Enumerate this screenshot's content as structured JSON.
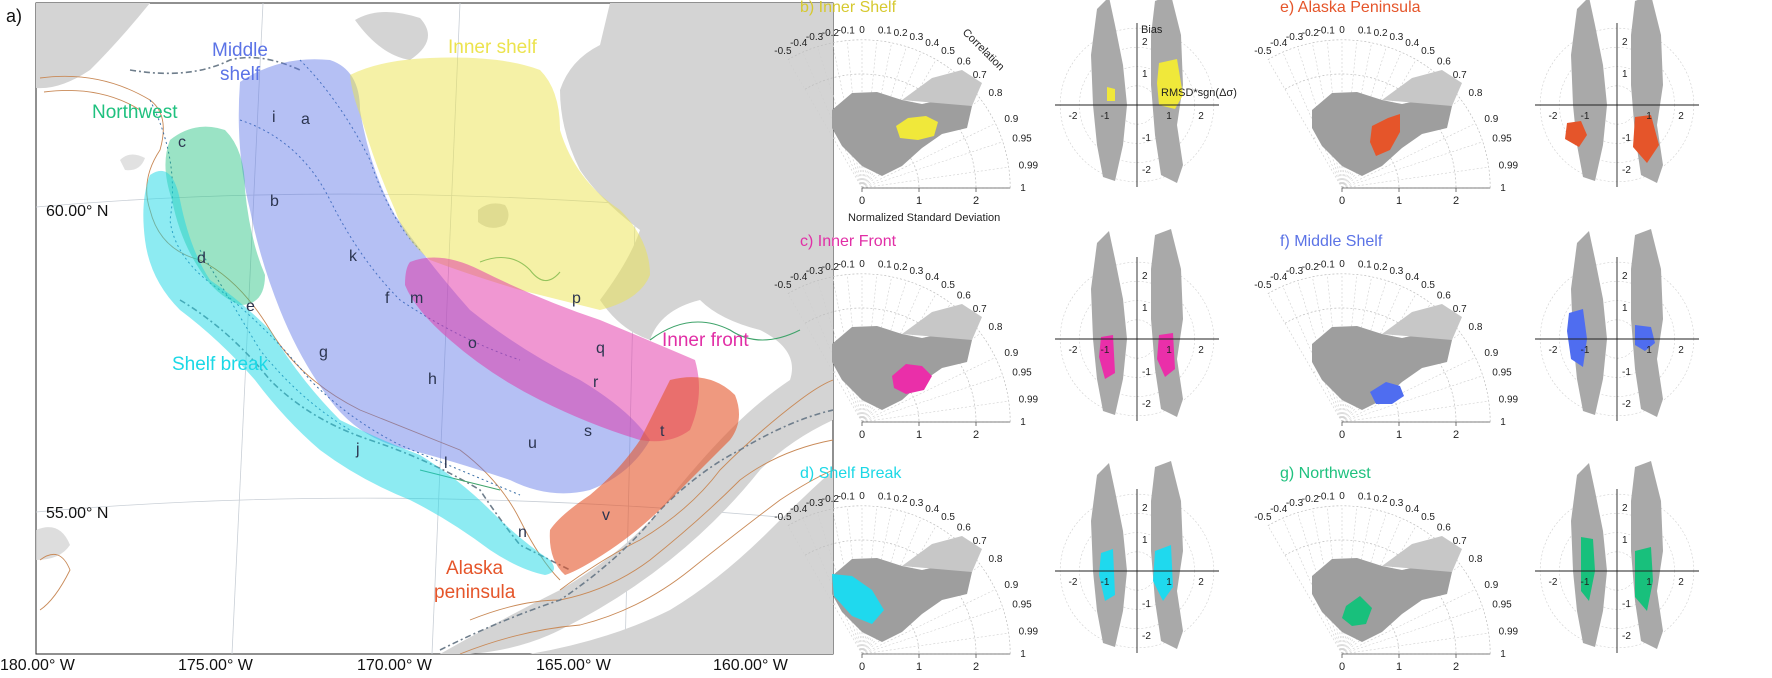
{
  "figure": {
    "panel_a": {
      "letter": "a)",
      "lat_labels": [
        "60.00° N",
        "55.00° N"
      ],
      "lon_labels": [
        "180.00° W",
        "175.00° W",
        "170.00° W",
        "165.00° W",
        "160.00° W"
      ],
      "regions": [
        {
          "key": "northwest",
          "label": [
            "Northwest"
          ],
          "color": "#1fc17f"
        },
        {
          "key": "middle",
          "label": [
            "Middle",
            "shelf"
          ],
          "color": "#5b73e6"
        },
        {
          "key": "inner",
          "label": [
            "Inner shelf"
          ],
          "color": "#ece34e"
        },
        {
          "key": "front",
          "label": [
            "Inner front"
          ],
          "color": "#e12fa6"
        },
        {
          "key": "break",
          "label": [
            "Shelf break"
          ],
          "color": "#1cd8e6"
        },
        {
          "key": "alaska",
          "label": [
            "Alaska",
            "peninsula"
          ],
          "color": "#e5552a"
        }
      ],
      "segment_letters": [
        "a",
        "b",
        "c",
        "d",
        "e",
        "f",
        "g",
        "h",
        "i",
        "j",
        "k",
        "l",
        "m",
        "n",
        "o",
        "p",
        "q",
        "r",
        "s",
        "t",
        "u",
        "v"
      ]
    },
    "taylor_common": {
      "correlation_ticks": [
        "-0.5",
        "-0.4",
        "-0.3",
        "-0.2",
        "-0.1",
        "0",
        "0.1",
        "0.2",
        "0.3",
        "0.4",
        "0.5",
        "0.6",
        "0.7",
        "0.8",
        "0.9",
        "0.95",
        "0.99",
        "1"
      ],
      "std_ticks": [
        "0",
        "1",
        "2"
      ],
      "correlation_label": "Correlation",
      "std_label": "Normalized Standard Deviation",
      "target_x_ticks": [
        "-2",
        "-1",
        "1",
        "2"
      ],
      "target_y_ticks": [
        "2",
        "1",
        "-1",
        "-2"
      ],
      "bias_label": "Bias",
      "rmsd_label": "RMSD*sgn(Δσ)"
    },
    "panels": [
      {
        "id": "b",
        "title": "b) Inner Shelf",
        "color": "#d6c92f",
        "fill": "#f0e83a"
      },
      {
        "id": "c",
        "title": "c) Inner Front",
        "color": "#e12fa6",
        "fill": "#ea2fa9"
      },
      {
        "id": "d",
        "title": "d) Shelf Break",
        "color": "#1cd8e6",
        "fill": "#1fd9ee"
      },
      {
        "id": "e",
        "title": "e) Alaska Peninsula",
        "color": "#e5552a",
        "fill": "#e5552a"
      },
      {
        "id": "f",
        "title": "f) Middle Shelf",
        "color": "#5b73e6",
        "fill": "#4f6df0"
      },
      {
        "id": "g",
        "title": "g) Northwest",
        "color": "#1fc17f",
        "fill": "#18c07c"
      }
    ]
  }
}
